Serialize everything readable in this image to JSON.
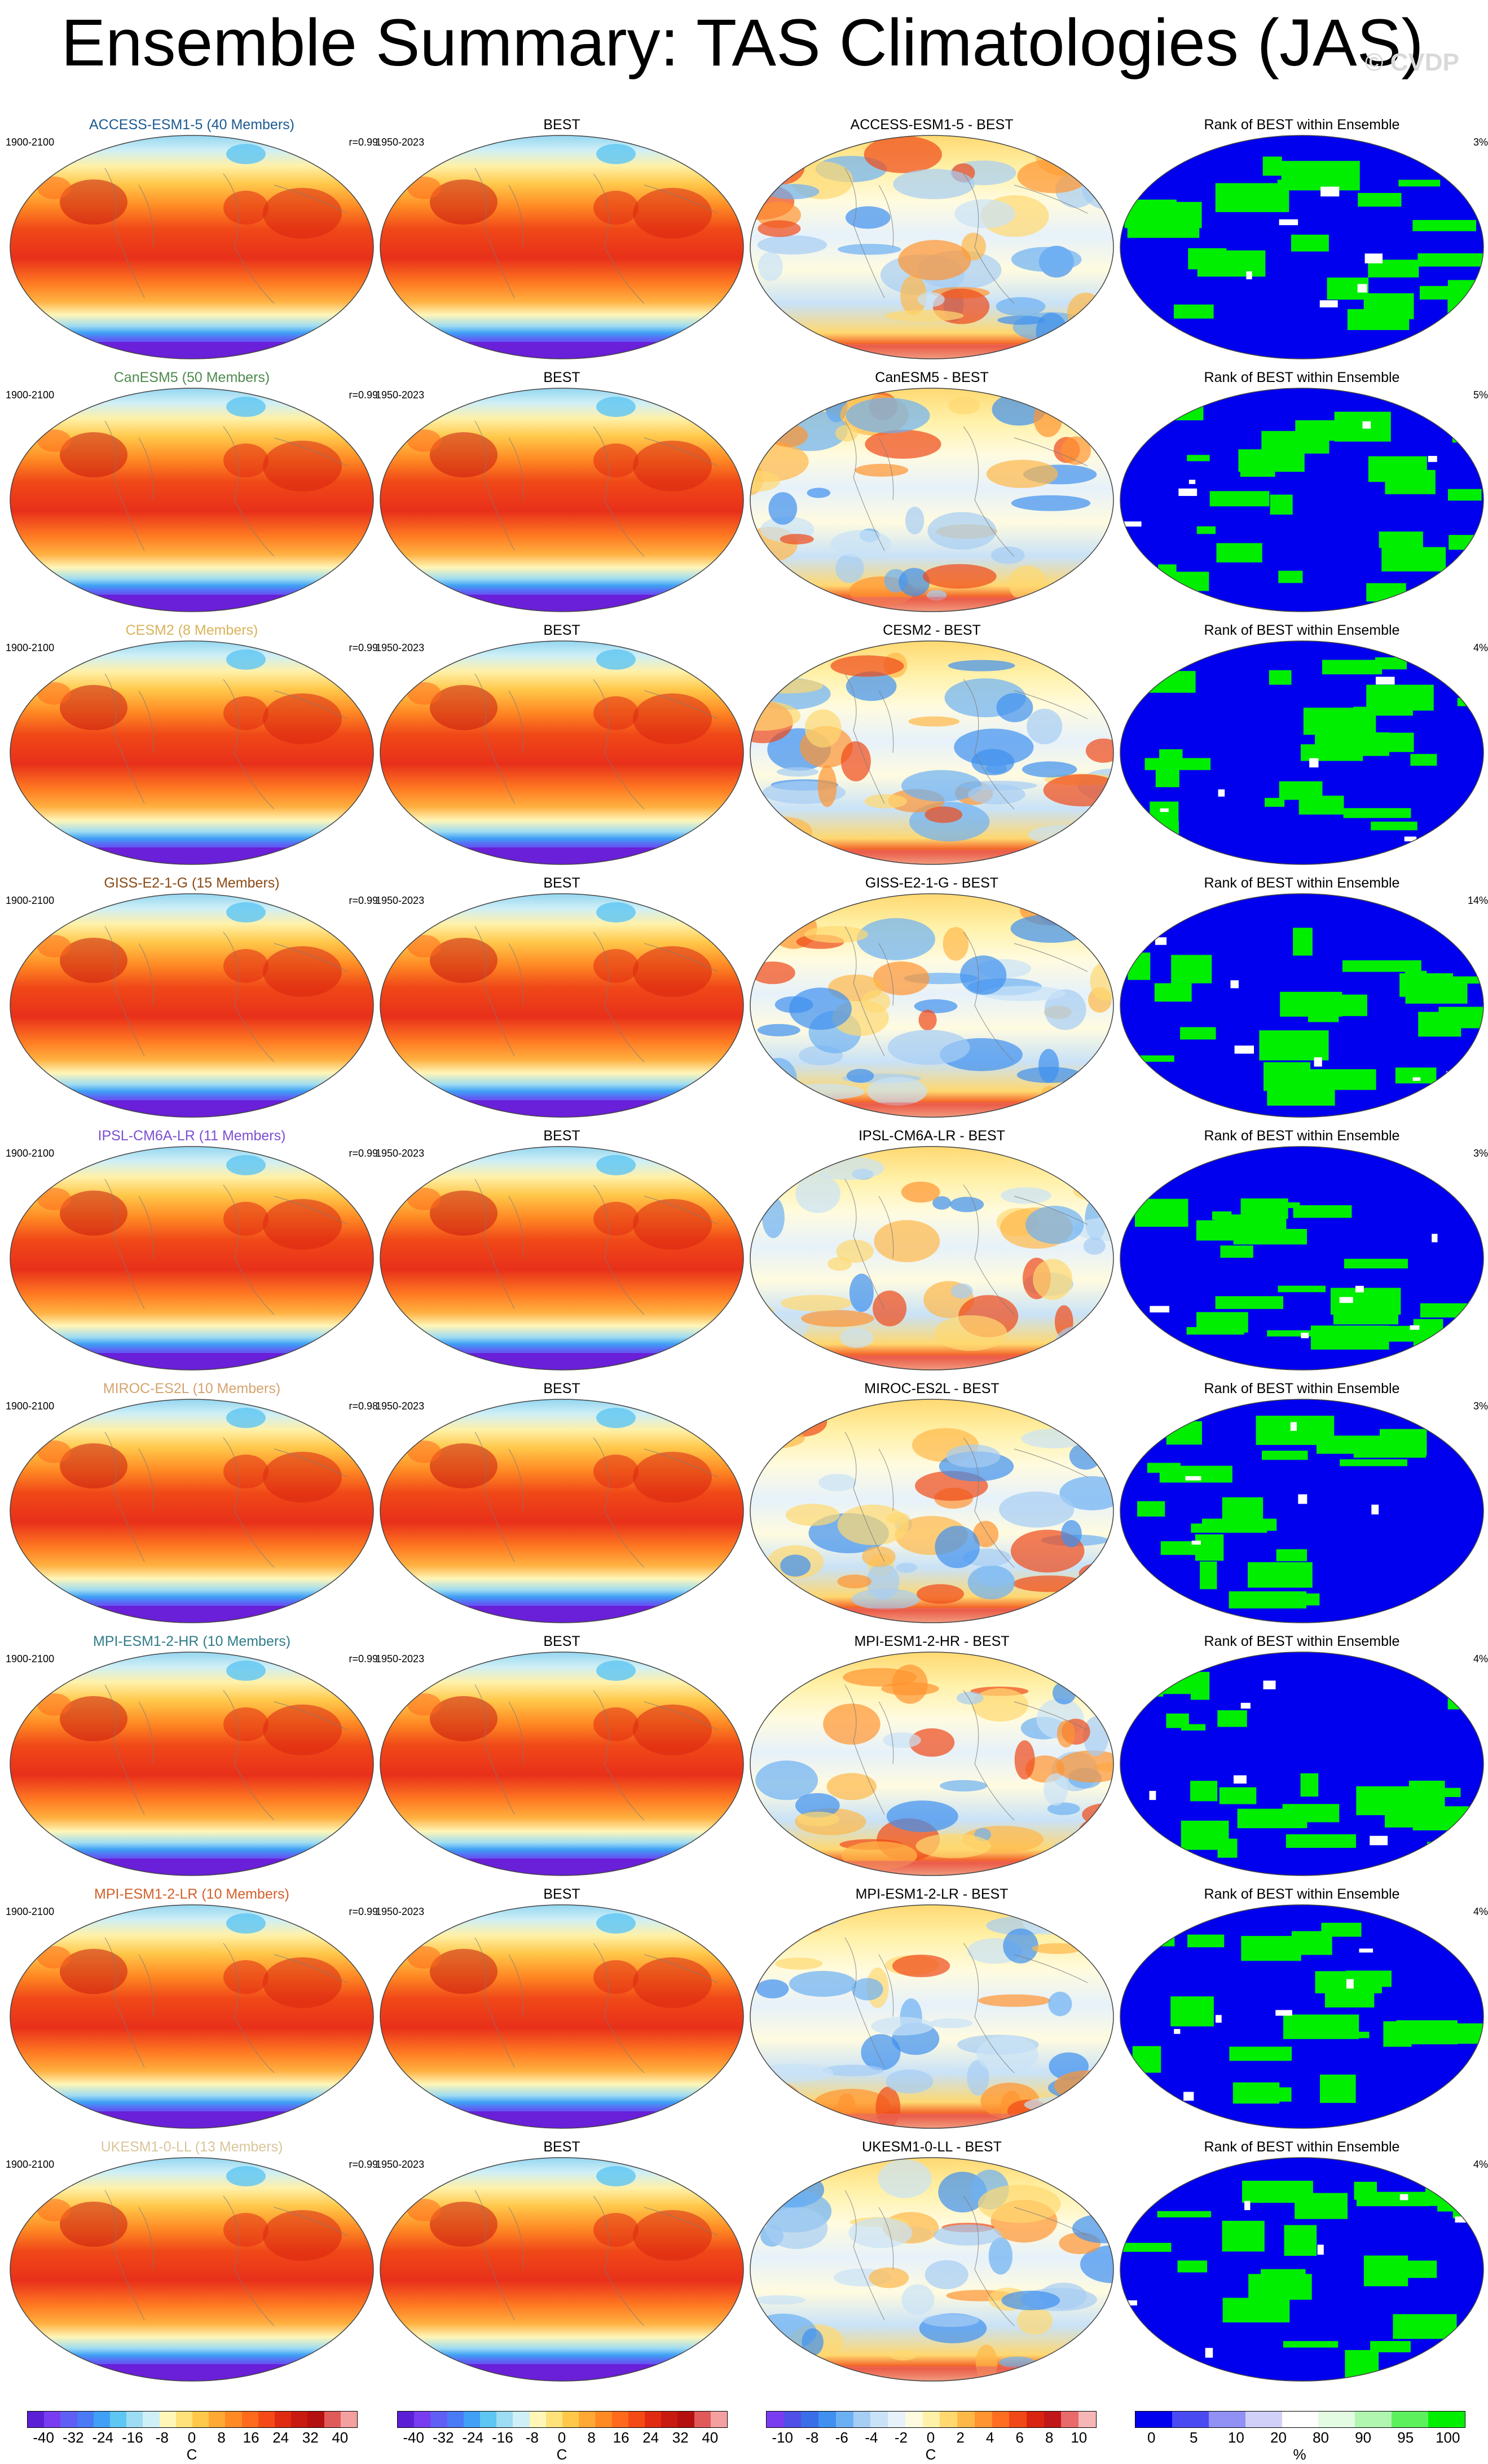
{
  "title": "Ensemble Summary: TAS Climatologies (JAS)",
  "watermark": "© CVDP",
  "rows": [
    {
      "model": "ACCESS-ESM1-5 (40 Members)",
      "model_color": "#1c5a92",
      "period": "1900-2100",
      "corr": "r=0.99",
      "obs": "BEST",
      "obs_period": "1950-2023",
      "diff": "ACCESS-ESM1-5 - BEST",
      "rank": "Rank of BEST within Ensemble",
      "pct": "3%"
    },
    {
      "model": "CanESM5 (50 Members)",
      "model_color": "#4f8a4f",
      "period": "1900-2100",
      "corr": "r=0.99",
      "obs": "BEST",
      "obs_period": "1950-2023",
      "diff": "CanESM5 - BEST",
      "rank": "Rank of BEST within Ensemble",
      "pct": "5%"
    },
    {
      "model": "CESM2 (8 Members)",
      "model_color": "#d8b35a",
      "period": "1900-2100",
      "corr": "r=0.99",
      "obs": "BEST",
      "obs_period": "1950-2023",
      "diff": "CESM2 - BEST",
      "rank": "Rank of BEST within Ensemble",
      "pct": "4%"
    },
    {
      "model": "GISS-E2-1-G (15 Members)",
      "model_color": "#8b4a14",
      "period": "1900-2100",
      "corr": "r=0.99",
      "obs": "BEST",
      "obs_period": "1950-2023",
      "diff": "GISS-E2-1-G - BEST",
      "rank": "Rank of BEST within Ensemble",
      "pct": "14%"
    },
    {
      "model": "IPSL-CM6A-LR (11 Members)",
      "model_color": "#7b4fd0",
      "period": "1900-2100",
      "corr": "r=0.99",
      "obs": "BEST",
      "obs_period": "1950-2023",
      "diff": "IPSL-CM6A-LR - BEST",
      "rank": "Rank of BEST within Ensemble",
      "pct": "3%"
    },
    {
      "model": "MIROC-ES2L (10 Members)",
      "model_color": "#d6a36e",
      "period": "1900-2100",
      "corr": "r=0.98",
      "obs": "BEST",
      "obs_period": "1950-2023",
      "diff": "MIROC-ES2L - BEST",
      "rank": "Rank of BEST within Ensemble",
      "pct": "3%"
    },
    {
      "model": "MPI-ESM1-2-HR (10 Members)",
      "model_color": "#2f7d8a",
      "period": "1900-2100",
      "corr": "r=0.99",
      "obs": "BEST",
      "obs_period": "1950-2023",
      "diff": "MPI-ESM1-2-HR - BEST",
      "rank": "Rank of BEST within Ensemble",
      "pct": "4%"
    },
    {
      "model": "MPI-ESM1-2-LR (10 Members)",
      "model_color": "#d2602a",
      "period": "1900-2100",
      "corr": "r=0.99",
      "obs": "BEST",
      "obs_period": "1950-2023",
      "diff": "MPI-ESM1-2-LR - BEST",
      "rank": "Rank of BEST within Ensemble",
      "pct": "4%"
    },
    {
      "model": "UKESM1-0-LL (13 Members)",
      "model_color": "#d9c59a",
      "period": "1900-2100",
      "corr": "r=0.99",
      "obs": "BEST",
      "obs_period": "1950-2023",
      "diff": "UKESM1-0-LL - BEST",
      "rank": "Rank of BEST within Ensemble",
      "pct": "4%"
    }
  ],
  "colorbars": [
    {
      "unit": "C",
      "ticks": [
        "-40",
        "-32",
        "-24",
        "-16",
        "-8",
        "0",
        "8",
        "16",
        "24",
        "32",
        "40"
      ],
      "colors": [
        "#5b1fd6",
        "#7a3cf0",
        "#5f5ff5",
        "#4a7af5",
        "#3fa0f5",
        "#5ec6f2",
        "#9ddcf2",
        "#cfeff6",
        "#fff6b8",
        "#ffe37a",
        "#ffc84a",
        "#ffa834",
        "#ff8a24",
        "#ff6a1c",
        "#f44a16",
        "#e02a12",
        "#c81a10",
        "#b51010",
        "#e05a5a",
        "#f4a0a0"
      ]
    },
    {
      "unit": "C",
      "ticks": [
        "-40",
        "-32",
        "-24",
        "-16",
        "-8",
        "0",
        "8",
        "16",
        "24",
        "32",
        "40"
      ],
      "colors": [
        "#5b1fd6",
        "#7a3cf0",
        "#5f5ff5",
        "#4a7af5",
        "#3fa0f5",
        "#5ec6f2",
        "#9ddcf2",
        "#cfeff6",
        "#fff6b8",
        "#ffe37a",
        "#ffc84a",
        "#ffa834",
        "#ff8a24",
        "#ff6a1c",
        "#f44a16",
        "#e02a12",
        "#c81a10",
        "#b51010",
        "#e05a5a",
        "#f4a0a0"
      ]
    },
    {
      "unit": "C",
      "ticks": [
        "-10",
        "-8",
        "-6",
        "-4",
        "-2",
        "0",
        "2",
        "4",
        "6",
        "8",
        "10"
      ],
      "colors": [
        "#7a3cf0",
        "#5050e8",
        "#3a6ee8",
        "#3f90f0",
        "#6cb0f4",
        "#a6cdf4",
        "#c9e2f7",
        "#e6f1fa",
        "#fffbe0",
        "#fff1a8",
        "#ffd870",
        "#ffb848",
        "#ff9430",
        "#ff6e20",
        "#f04818",
        "#d82410",
        "#c01818",
        "#e86a6a",
        "#f7b6b6"
      ]
    },
    {
      "unit": "%",
      "ticks": [
        "0",
        "5",
        "10",
        "20",
        "80",
        "90",
        "95",
        "100"
      ],
      "colors": [
        "#0000ee",
        "#4a4af2",
        "#9090f5",
        "#d0d0f8",
        "#ffffff",
        "#e2fbe2",
        "#b0f5b0",
        "#5df05d",
        "#00ee00"
      ]
    }
  ]
}
